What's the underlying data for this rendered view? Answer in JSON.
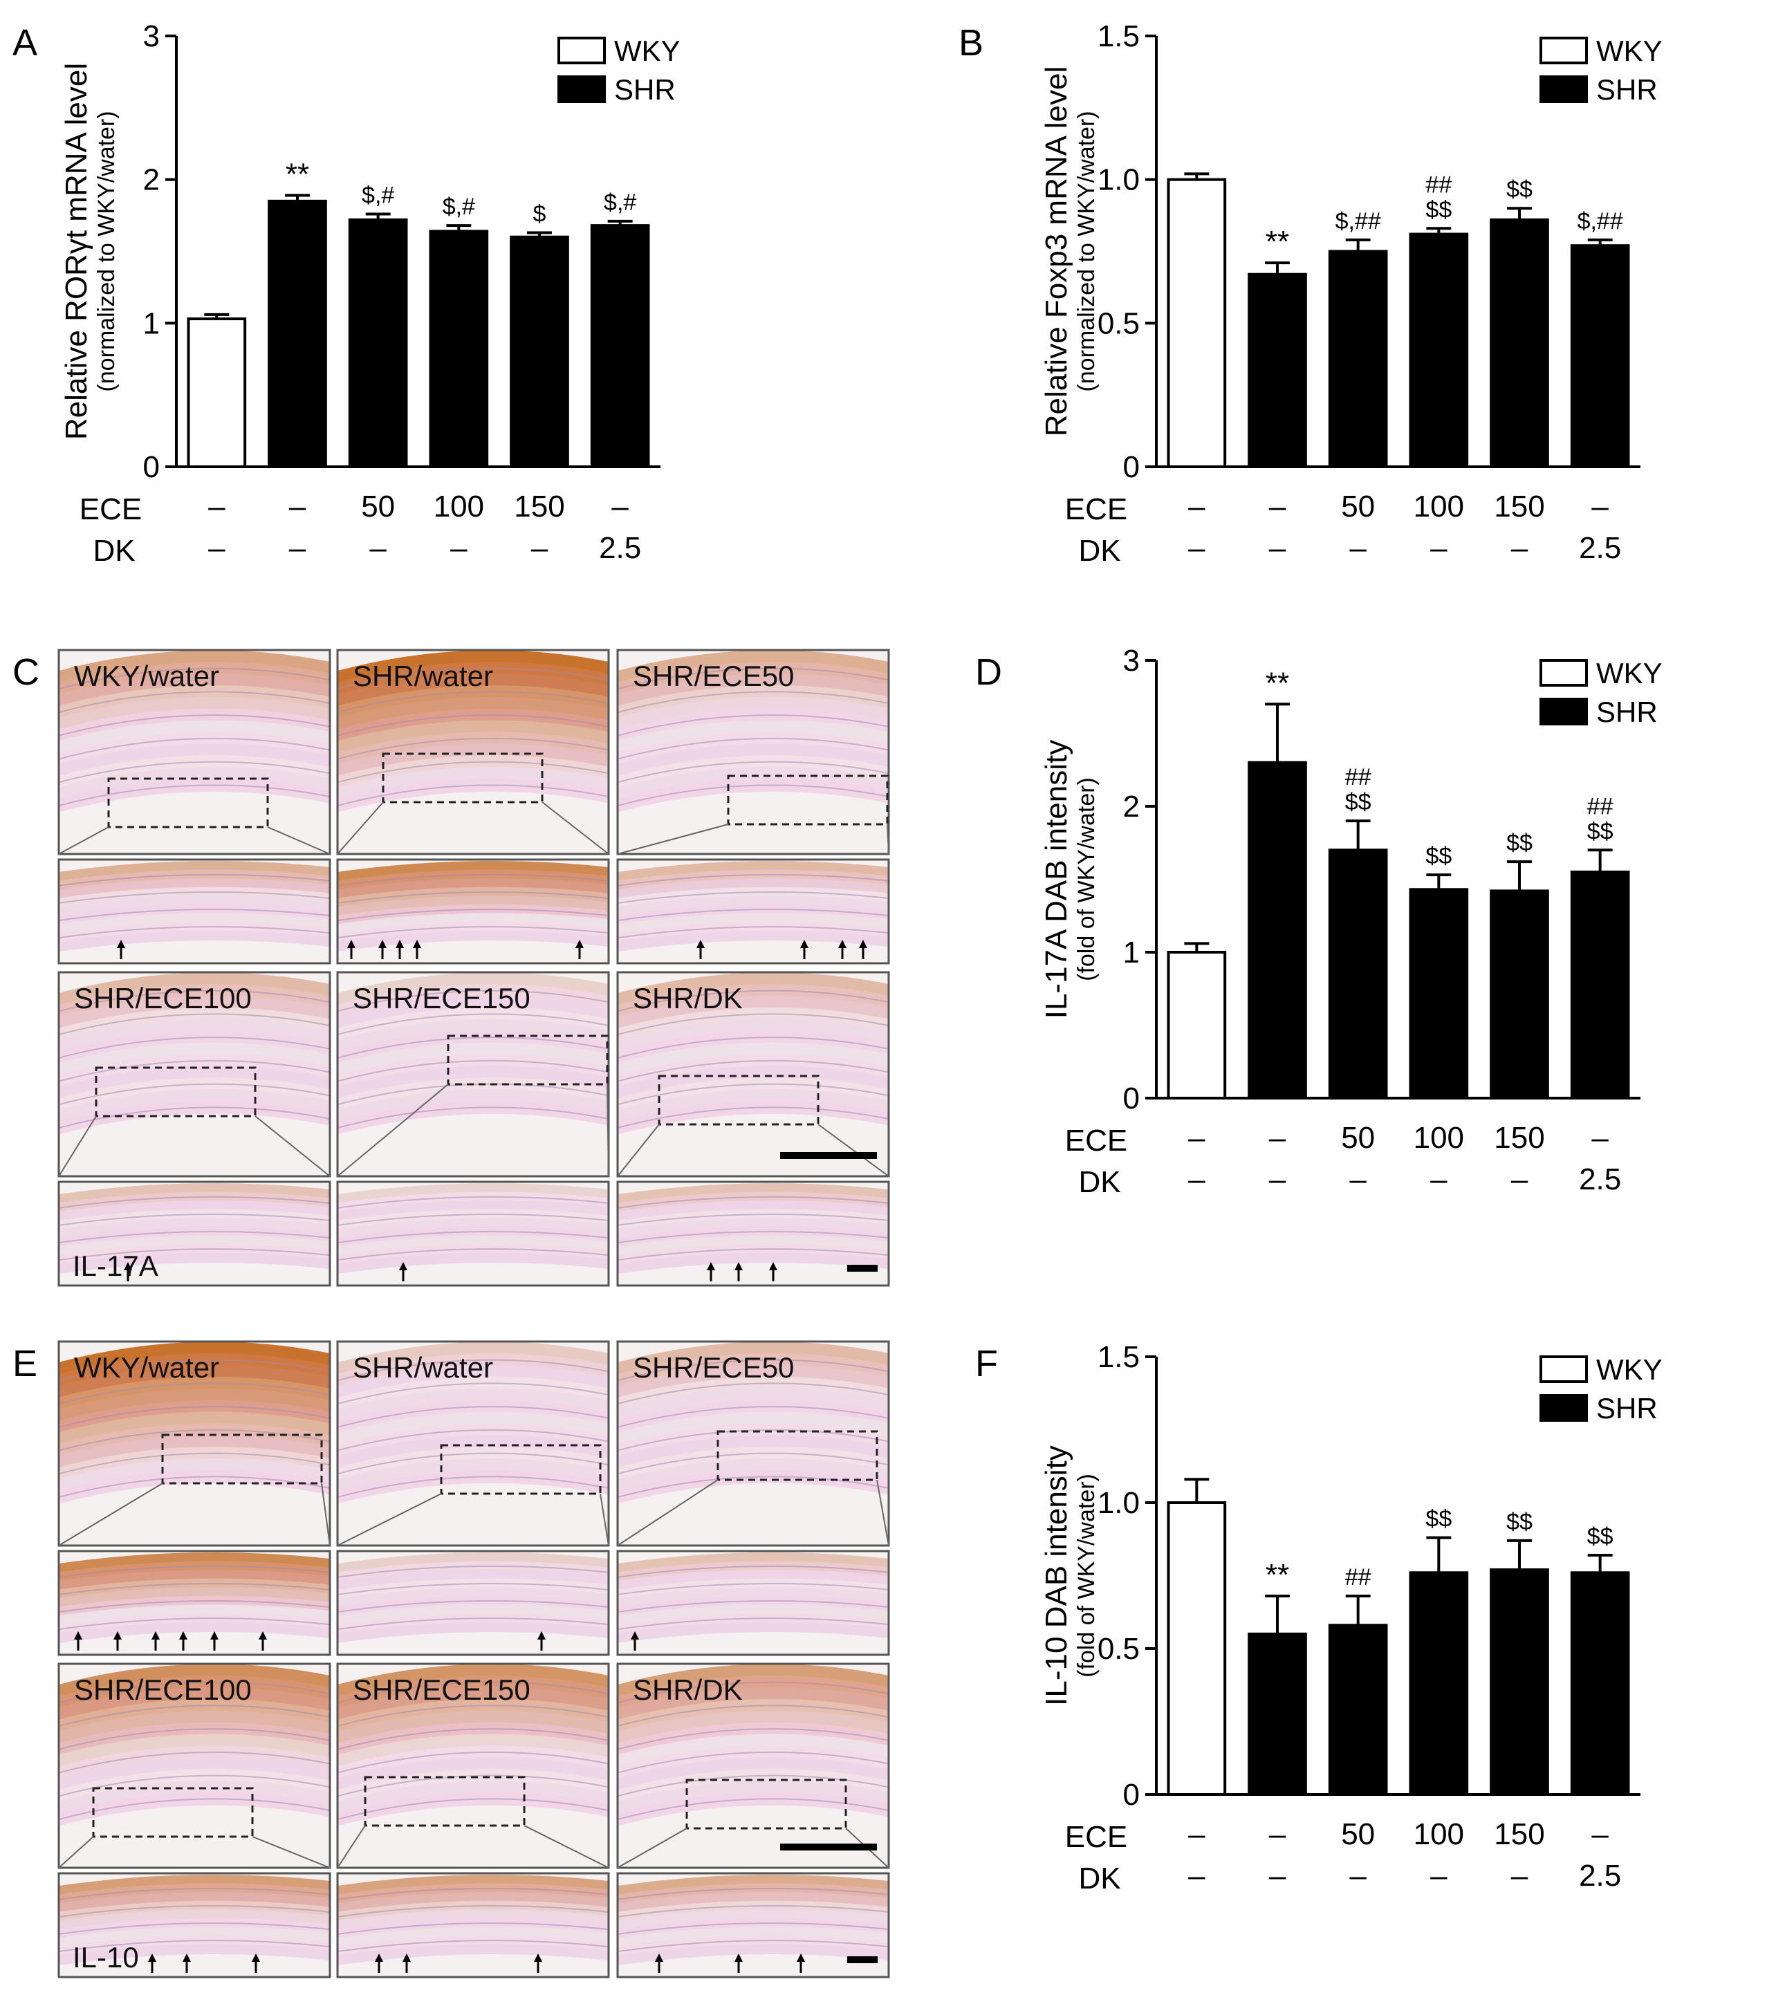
{
  "figure": {
    "panels": [
      "A",
      "B",
      "C",
      "D",
      "E",
      "F"
    ]
  },
  "colors": {
    "wky_fill": "#ffffff",
    "shr_fill": "#000000",
    "stain_brown": "#c9822e",
    "tissue_light": "#efe3e3",
    "tissue_purple": "#a08ab5",
    "background": "#ffffff"
  },
  "legend": {
    "wky": "WKY",
    "shr": "SHR"
  },
  "x_treatment": {
    "row_labels": [
      "ECE",
      "DK"
    ],
    "ece": [
      "–",
      "–",
      "50",
      "100",
      "150",
      "–"
    ],
    "dk": [
      "–",
      "–",
      "–",
      "–",
      "–",
      "2.5"
    ]
  },
  "micro_labels": {
    "groups": [
      "WKY/water",
      "SHR/water",
      "SHR/ECE50",
      "SHR/ECE100",
      "SHR/ECE150",
      "SHR/DK"
    ],
    "stain_C": "IL-17A",
    "stain_E": "IL-10"
  },
  "chart_data": [
    {
      "panel": "A",
      "type": "bar",
      "ylabel": "Relative RORγt mRNA level",
      "ylabel_sub": "(normalized to WKY/water)",
      "ylim": [
        0,
        3
      ],
      "yticks": [
        "0",
        "1",
        "2",
        "3"
      ],
      "groups": [
        "WKY",
        "SHR",
        "SHR",
        "SHR",
        "SHR",
        "SHR"
      ],
      "values": [
        1.03,
        1.85,
        1.72,
        1.64,
        1.6,
        1.68
      ],
      "errors": [
        0.03,
        0.04,
        0.04,
        0.04,
        0.03,
        0.03
      ],
      "annotations": [
        "",
        "**",
        "$,#",
        "$,#",
        "$",
        "$,#"
      ]
    },
    {
      "panel": "B",
      "type": "bar",
      "ylabel": "Relative Foxp3 mRNA level",
      "ylabel_sub": "(normalized to WKY/water)",
      "ylim": [
        0,
        1.5
      ],
      "yticks": [
        "0",
        "0.5",
        "1.0",
        "1.5"
      ],
      "groups": [
        "WKY",
        "SHR",
        "SHR",
        "SHR",
        "SHR",
        "SHR"
      ],
      "values": [
        1.0,
        0.67,
        0.75,
        0.81,
        0.86,
        0.77
      ],
      "errors": [
        0.02,
        0.04,
        0.04,
        0.02,
        0.04,
        0.02
      ],
      "annotations": [
        "",
        "**",
        "$,##",
        "##\n$$",
        "$$",
        "$,##"
      ]
    },
    {
      "panel": "D",
      "type": "bar",
      "ylabel": "IL-17A DAB intensity",
      "ylabel_sub": "(fold of WKY/water)",
      "ylim": [
        0,
        3
      ],
      "yticks": [
        "0",
        "1",
        "2",
        "3"
      ],
      "groups": [
        "WKY",
        "SHR",
        "SHR",
        "SHR",
        "SHR",
        "SHR"
      ],
      "values": [
        1.0,
        2.3,
        1.7,
        1.43,
        1.42,
        1.55
      ],
      "errors": [
        0.06,
        0.4,
        0.2,
        0.1,
        0.2,
        0.15
      ],
      "annotations": [
        "",
        "**",
        "##\n$$",
        "$$",
        "$$",
        "##\n$$"
      ]
    },
    {
      "panel": "F",
      "type": "bar",
      "ylabel": "IL-10 DAB intensity",
      "ylabel_sub": "(fold of WKY/water)",
      "ylim": [
        0,
        1.5
      ],
      "yticks": [
        "0",
        "0.5",
        "1.0",
        "1.5"
      ],
      "groups": [
        "WKY",
        "SHR",
        "SHR",
        "SHR",
        "SHR",
        "SHR"
      ],
      "values": [
        1.0,
        0.55,
        0.58,
        0.76,
        0.77,
        0.76
      ],
      "errors": [
        0.08,
        0.13,
        0.1,
        0.12,
        0.1,
        0.06
      ],
      "annotations": [
        "",
        "**",
        "##",
        "$$",
        "$$",
        "$$"
      ]
    }
  ]
}
